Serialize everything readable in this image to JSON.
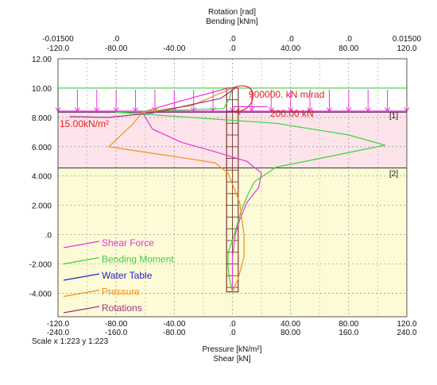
{
  "titles": {
    "top_line1": "Rotation [rad]",
    "top_line2": "Bending [kNm]",
    "bottom_line1": "Pressure [kN/m²]",
    "bottom_line2": "Shear [kN]"
  },
  "scale_text": "Scale x 1:223  y 1:223",
  "annotations": {
    "spring": "900000. kN m/rad",
    "point_load": "200.00 kN",
    "surcharge": "15.00kN/m²",
    "stage_labels": [
      "[1]",
      "[2]"
    ]
  },
  "colors": {
    "shear": "#e535d8",
    "bending": "#3ed23e",
    "water": "#2222cc",
    "pressure": "#f0901e",
    "rotation": "#a0308a",
    "wall": "#7a3b2e",
    "load": "#e535d8",
    "annotation": "#e0241c",
    "soil_upper": "#fde3ea",
    "soil_lower": "#fdfbd6"
  },
  "chart_data": {
    "type": "line",
    "ylim": [
      -5.6,
      12.0
    ],
    "xlim": [
      -120,
      120
    ],
    "y_ticks": [
      "12.00",
      "10.00",
      "8.000",
      "6.000",
      "4.000",
      "2.000",
      ".0",
      "-2.000",
      "-4.000"
    ],
    "y_tick_values": [
      12,
      10,
      8,
      6,
      4,
      2,
      0,
      -2,
      -4
    ],
    "top_ticks_rotation": [
      "-0.01500",
      ".0",
      ".0",
      ".0",
      ".0",
      "0.01500"
    ],
    "top_ticks_rotation_values": [
      -120,
      -80,
      -40,
      0,
      40,
      80,
      120
    ],
    "top_ticks_rotation_labels_at": [
      -120,
      -80,
      0,
      40,
      80,
      120
    ],
    "top_ticks_bending": [
      "-120.0",
      "-80.00",
      "-40.00",
      ".0",
      "40.00",
      "80.00",
      "120.0"
    ],
    "bottom_ticks_pressure": [
      "-120.0",
      "-80.00",
      "-40.00",
      ".0",
      "40.00",
      "80.00",
      "120.0"
    ],
    "bottom_ticks_shear": [
      "-240.0",
      "-160.0",
      "-80.00",
      ".0",
      "80.00",
      "160.0",
      "240.0"
    ],
    "x_tick_values": [
      -120,
      -80,
      -40,
      0,
      40,
      80,
      120
    ],
    "wall": {
      "top": 10.0,
      "bottom": -3.9,
      "half_width": 4
    },
    "soil_layers": [
      {
        "top": 8.35,
        "bottom": 4.55,
        "fill": "soil_upper"
      },
      {
        "top": 4.55,
        "bottom": -5.6,
        "fill": "soil_lower"
      }
    ],
    "stage_lines": [
      8.35,
      4.55
    ],
    "surcharge_load": {
      "top": 10.0,
      "bottom": 8.35,
      "x_from": -120,
      "x_to": 120
    },
    "series": [
      {
        "name": "Shear Force",
        "key": "shear",
        "points": [
          [
            -3,
            10
          ],
          [
            -40,
            9.0
          ],
          [
            -62,
            8.35
          ],
          [
            -55,
            7.2
          ],
          [
            -35,
            6.3
          ],
          [
            -10,
            5.6
          ],
          [
            10,
            5.0
          ],
          [
            20,
            4.2
          ],
          [
            18,
            3.2
          ],
          [
            10,
            2.2
          ],
          [
            5,
            1.0
          ],
          [
            2,
            0
          ],
          [
            0,
            -1.5
          ],
          [
            0,
            -3.0
          ],
          [
            0,
            -3.9
          ]
        ]
      },
      {
        "name": "Bending Moment",
        "key": "bending",
        "points": [
          [
            0,
            10
          ],
          [
            -2,
            9.3
          ],
          [
            -6,
            8.6
          ],
          [
            -80,
            8.35
          ],
          [
            30,
            7.6
          ],
          [
            80,
            6.8
          ],
          [
            105,
            6.1
          ],
          [
            60,
            5.2
          ],
          [
            30,
            4.6
          ],
          [
            15,
            3.6
          ],
          [
            10,
            2.6
          ],
          [
            6,
            1.6
          ],
          [
            3,
            0.6
          ],
          [
            0,
            -0.4
          ],
          [
            -3,
            -1.2
          ],
          [
            -3,
            -2.2
          ],
          [
            -2,
            -3.0
          ],
          [
            0,
            -3.9
          ]
        ]
      },
      {
        "name": "Water Table",
        "key": "water",
        "points": []
      },
      {
        "name": "Pressure",
        "key": "pressure",
        "points": [
          [
            0,
            10
          ],
          [
            -28,
            8.8
          ],
          [
            -62,
            8.35
          ],
          [
            -68,
            7.6
          ],
          [
            -85,
            6.0
          ],
          [
            -72,
            5.8
          ],
          [
            -38,
            5.3
          ],
          [
            -12,
            4.9
          ],
          [
            -3,
            4.2
          ],
          [
            5,
            2.2
          ],
          [
            8,
            0
          ],
          [
            8,
            -1.5
          ],
          [
            4,
            -3.0
          ],
          [
            0,
            -3.9
          ]
        ]
      },
      {
        "name": "Rotations",
        "key": "rotation",
        "points": [
          [
            -112,
            8.05
          ],
          [
            -85,
            8.0
          ],
          [
            -55,
            8.3
          ],
          [
            -8,
            9.3
          ],
          [
            2,
            10
          ]
        ]
      }
    ]
  }
}
